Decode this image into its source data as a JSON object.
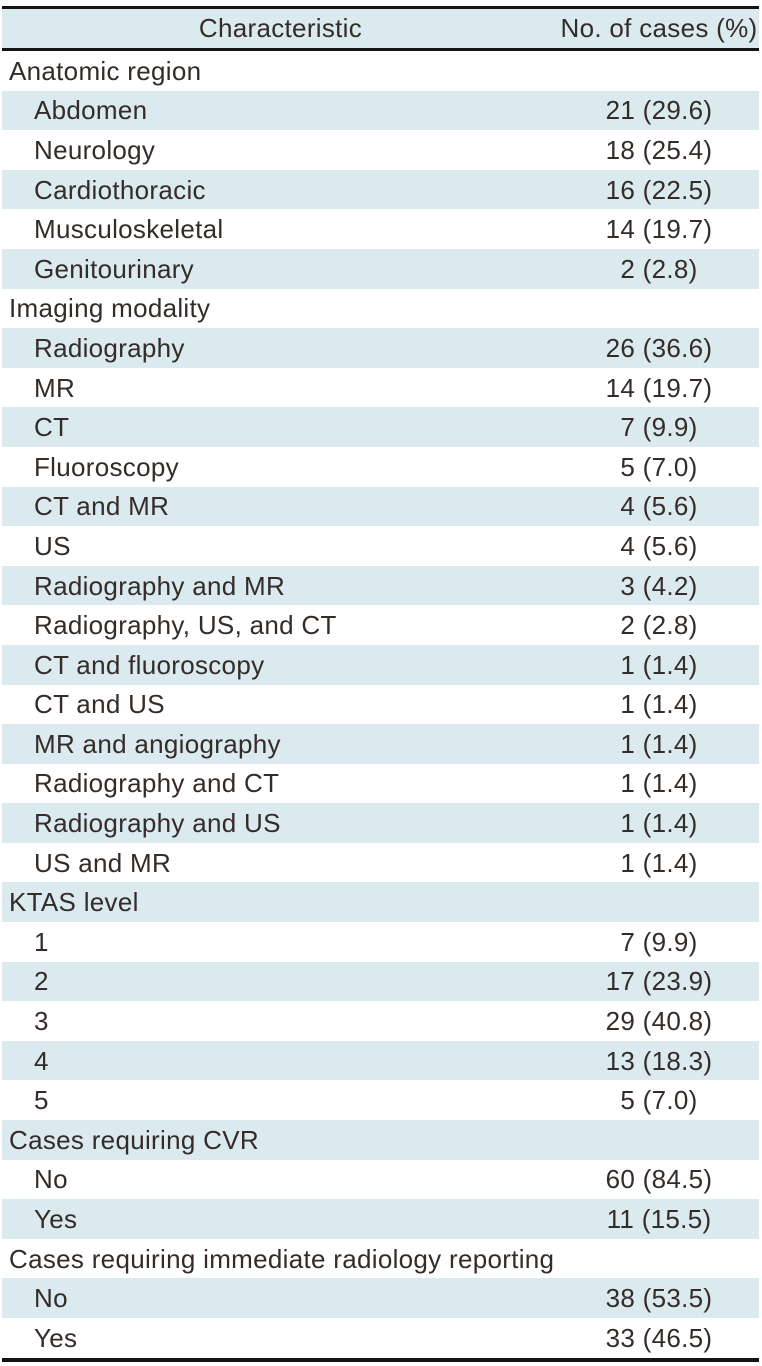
{
  "table": {
    "title_hint": "Patient and case characteristics table",
    "columns": {
      "characteristic": "Characteristic",
      "cases": "No. of cases (%)"
    },
    "colors": {
      "stripe": "#dbeaef",
      "text": "#332c29",
      "border": "#171310"
    },
    "rows": [
      {
        "type": "section",
        "label": "Anatomic region",
        "value": ""
      },
      {
        "type": "item",
        "label": "Abdomen",
        "value": "21 (29.6)"
      },
      {
        "type": "item",
        "label": "Neurology",
        "value": "18 (25.4)"
      },
      {
        "type": "item",
        "label": "Cardiothoracic",
        "value": "16 (22.5)"
      },
      {
        "type": "item",
        "label": "Musculoskeletal",
        "value": "14 (19.7)"
      },
      {
        "type": "item",
        "label": "Genitourinary",
        "value": "2 (2.8)"
      },
      {
        "type": "section",
        "label": "Imaging modality",
        "value": ""
      },
      {
        "type": "item",
        "label": "Radiography",
        "value": "26 (36.6)"
      },
      {
        "type": "item",
        "label": "MR",
        "value": "14 (19.7)"
      },
      {
        "type": "item",
        "label": "CT",
        "value": "7 (9.9)"
      },
      {
        "type": "item",
        "label": "Fluoroscopy",
        "value": "5 (7.0)"
      },
      {
        "type": "item",
        "label": "CT and MR",
        "value": "4 (5.6)"
      },
      {
        "type": "item",
        "label": "US",
        "value": "4 (5.6)"
      },
      {
        "type": "item",
        "label": "Radiography and MR",
        "value": "3 (4.2)"
      },
      {
        "type": "item",
        "label": "Radiography, US, and CT",
        "value": "2 (2.8)"
      },
      {
        "type": "item",
        "label": "CT and fluoroscopy",
        "value": "1 (1.4)"
      },
      {
        "type": "item",
        "label": "CT and US",
        "value": "1 (1.4)"
      },
      {
        "type": "item",
        "label": "MR and angiography",
        "value": "1 (1.4)"
      },
      {
        "type": "item",
        "label": "Radiography and CT",
        "value": "1 (1.4)"
      },
      {
        "type": "item",
        "label": "Radiography and US",
        "value": "1 (1.4)"
      },
      {
        "type": "item",
        "label": "US and MR",
        "value": "1 (1.4)"
      },
      {
        "type": "section",
        "label": "KTAS level",
        "value": ""
      },
      {
        "type": "item",
        "label": "1",
        "value": "7 (9.9)"
      },
      {
        "type": "item",
        "label": "2",
        "value": "17 (23.9)"
      },
      {
        "type": "item",
        "label": "3",
        "value": "29 (40.8)"
      },
      {
        "type": "item",
        "label": "4",
        "value": "13 (18.3)"
      },
      {
        "type": "item",
        "label": "5",
        "value": "5 (7.0)"
      },
      {
        "type": "section",
        "label": "Cases requiring CVR",
        "value": ""
      },
      {
        "type": "item",
        "label": "No",
        "value": "60 (84.5)"
      },
      {
        "type": "item",
        "label": "Yes",
        "value": "11 (15.5)"
      },
      {
        "type": "section",
        "label": "Cases requiring immediate radiology reporting",
        "value": ""
      },
      {
        "type": "item",
        "label": "No",
        "value": "38 (53.5)"
      },
      {
        "type": "item",
        "label": "Yes",
        "value": "33 (46.5)"
      }
    ]
  }
}
